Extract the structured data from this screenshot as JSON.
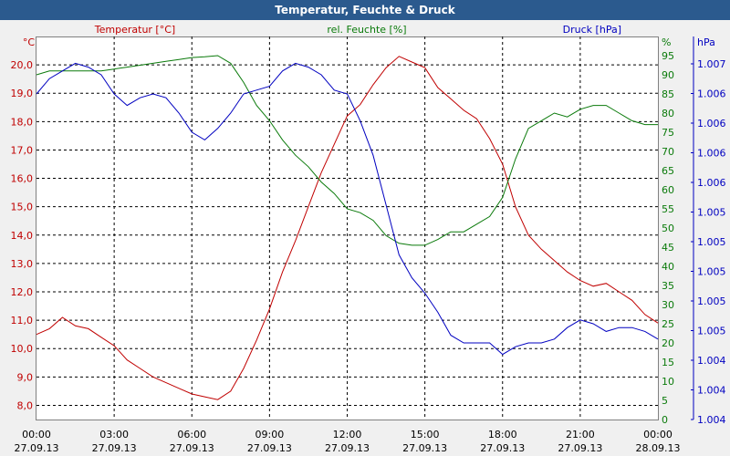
{
  "title": "Temperatur, Feuchte & Druck",
  "colors": {
    "temperature": "#c00000",
    "humidity": "#0a7a0a",
    "pressure": "#0000c0",
    "grid": "#000000",
    "plot_bg": "#ffffff",
    "title_bg": "#2b5a8e"
  },
  "chart_data": {
    "type": "line",
    "title": "Temperatur, Feuchte & Druck",
    "grid": true,
    "x_ticks": [
      {
        "time": "00:00",
        "date": "27.09.13"
      },
      {
        "time": "03:00",
        "date": "27.09.13"
      },
      {
        "time": "06:00",
        "date": "27.09.13"
      },
      {
        "time": "09:00",
        "date": "27.09.13"
      },
      {
        "time": "12:00",
        "date": "27.09.13"
      },
      {
        "time": "15:00",
        "date": "27.09.13"
      },
      {
        "time": "18:00",
        "date": "27.09.13"
      },
      {
        "time": "21:00",
        "date": "27.09.13"
      },
      {
        "time": "00:00",
        "date": "28.09.13"
      }
    ],
    "xlim": [
      "27.09.13 00:00",
      "28.09.13 00:00"
    ],
    "axes": {
      "temperature": {
        "label": "Temperatur [°C]",
        "unit": "°C",
        "ylim": [
          7.5,
          21.0
        ],
        "tick_labels": [
          "20,0",
          "19,0",
          "18,0",
          "17,0",
          "16,0",
          "15,0",
          "14,0",
          "13,0",
          "12,0",
          "11,0",
          "10,0",
          "9,0",
          "8,0"
        ]
      },
      "humidity": {
        "label": "rel. Feuchte [%]",
        "unit": "%",
        "ylim": [
          0,
          100
        ],
        "tick_labels": [
          "95",
          "90",
          "85",
          "80",
          "75",
          "70",
          "65",
          "60",
          "55",
          "50",
          "45",
          "40",
          "35",
          "30",
          "25",
          "20",
          "15",
          "10",
          "5",
          "0"
        ]
      },
      "pressure": {
        "label": "Druck [hPa]",
        "unit": "hPa",
        "tick_labels": [
          "1.007",
          "1.006",
          "1.006",
          "1.006",
          "1.006",
          "1.005",
          "1.005",
          "1.005",
          "1.005",
          "1.005",
          "1.004",
          "1.004",
          "1.004"
        ]
      }
    },
    "series": [
      {
        "name": "Temperatur [°C]",
        "axis": "temperature",
        "hours": [
          0,
          0.5,
          1,
          1.5,
          2,
          2.5,
          3,
          3.5,
          4,
          4.5,
          5,
          5.5,
          6,
          6.5,
          7,
          7.5,
          8,
          8.5,
          9,
          9.5,
          10,
          10.5,
          11,
          11.5,
          12,
          12.5,
          13,
          13.5,
          14,
          14.5,
          15,
          15.5,
          16,
          16.5,
          17,
          17.5,
          18,
          18.5,
          19,
          19.5,
          20,
          20.5,
          21,
          21.5,
          22,
          22.5,
          23,
          23.5,
          24
        ],
        "values": [
          10.5,
          10.7,
          11.1,
          10.8,
          10.7,
          10.4,
          10.1,
          9.6,
          9.3,
          9.0,
          8.8,
          8.6,
          8.4,
          8.3,
          8.2,
          8.5,
          9.3,
          10.3,
          11.4,
          12.7,
          13.8,
          15.0,
          16.2,
          17.2,
          18.2,
          18.6,
          19.3,
          19.9,
          20.3,
          20.1,
          19.9,
          19.2,
          18.8,
          18.4,
          18.1,
          17.4,
          16.5,
          15.0,
          14.0,
          13.5,
          13.1,
          12.7,
          12.4,
          12.2,
          12.3,
          12.0,
          11.7,
          11.2,
          10.9
        ]
      },
      {
        "name": "rel. Feuchte [%]",
        "axis": "humidity",
        "hours": [
          0,
          0.5,
          1,
          1.5,
          2,
          2.5,
          3,
          3.5,
          4,
          4.5,
          5,
          5.5,
          6,
          6.5,
          7,
          7.5,
          8,
          8.5,
          9,
          9.5,
          10,
          10.5,
          11,
          11.5,
          12,
          12.5,
          13,
          13.5,
          14,
          14.5,
          15,
          15.5,
          16,
          16.5,
          17,
          17.5,
          18,
          18.5,
          19,
          19.5,
          20,
          20.5,
          21,
          21.5,
          22,
          22.5,
          23,
          23.5,
          24
        ],
        "values": [
          90,
          91,
          91,
          91,
          91,
          91,
          91.5,
          92,
          92.5,
          93,
          93.5,
          94,
          94.5,
          94.7,
          95,
          93,
          88,
          82,
          78,
          73,
          69,
          66,
          62,
          59,
          55,
          54,
          52,
          48,
          46,
          45.5,
          45.5,
          47,
          49,
          49,
          51,
          53,
          58,
          68,
          76,
          78,
          80,
          79,
          81,
          82,
          82,
          80,
          78,
          77,
          77
        ]
      },
      {
        "name": "Druck [hPa]",
        "axis": "pressure",
        "hours": [
          0,
          0.5,
          1,
          1.5,
          2,
          2.5,
          3,
          3.5,
          4,
          4.5,
          5,
          5.5,
          6,
          6.5,
          7,
          7.5,
          8,
          8.5,
          9,
          9.5,
          10,
          10.5,
          11,
          11.5,
          12,
          12.5,
          13,
          13.5,
          14,
          14.5,
          15,
          15.5,
          16,
          16.5,
          17,
          17.5,
          18,
          18.5,
          19,
          19.5,
          20,
          20.5,
          21,
          21.5,
          22,
          22.5,
          23,
          23.5,
          24
        ],
        "values": [
          85,
          89,
          91,
          93,
          92,
          90,
          85,
          82,
          84,
          85,
          84,
          80,
          75,
          73,
          76,
          80,
          85,
          86,
          87,
          91,
          93,
          92,
          90,
          86,
          85,
          78,
          69,
          56,
          43,
          37,
          33,
          28,
          22,
          20,
          20,
          20,
          17,
          19,
          20,
          20,
          21,
          24,
          26,
          25,
          23,
          24,
          24,
          23,
          21
        ]
      }
    ]
  }
}
